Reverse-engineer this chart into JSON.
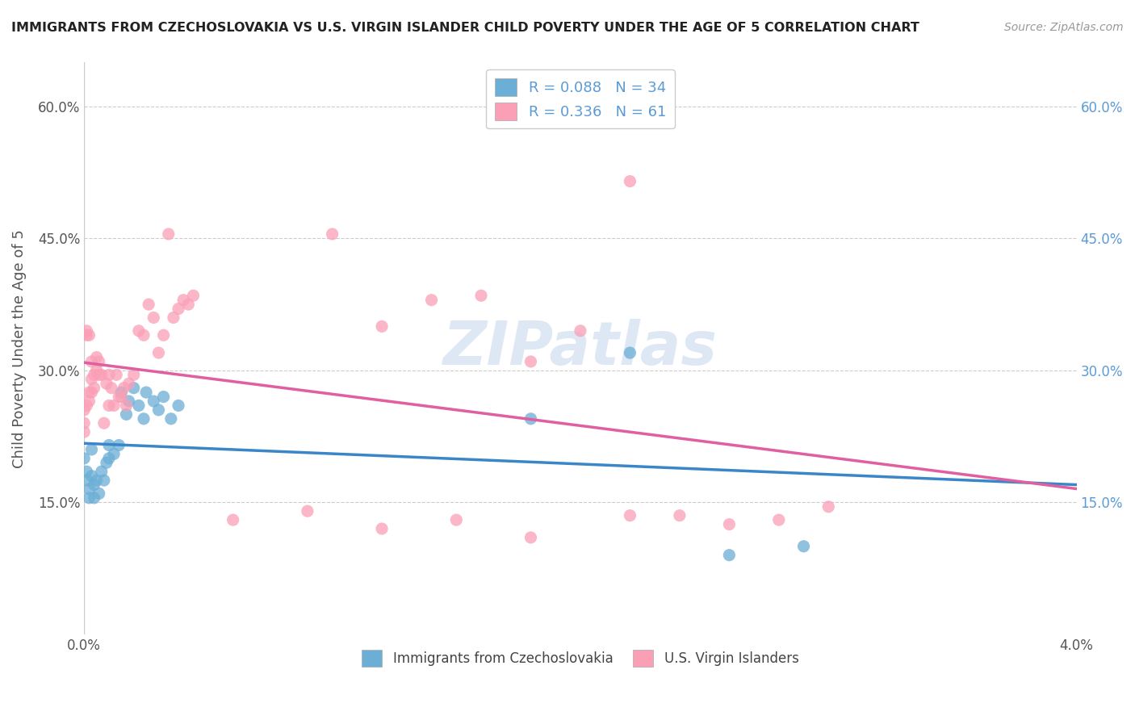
{
  "title": "IMMIGRANTS FROM CZECHOSLOVAKIA VS U.S. VIRGIN ISLANDER CHILD POVERTY UNDER THE AGE OF 5 CORRELATION CHART",
  "source": "Source: ZipAtlas.com",
  "ylabel": "Child Poverty Under the Age of 5",
  "xmin": 0.0,
  "xmax": 0.04,
  "ymin": 0.0,
  "ymax": 0.65,
  "yticks": [
    0.15,
    0.3,
    0.45,
    0.6
  ],
  "ytick_labels": [
    "15.0%",
    "30.0%",
    "45.0%",
    "60.0%"
  ],
  "xtick_labels": [
    "0.0%",
    "4.0%"
  ],
  "legend_entry1_r": "0.088",
  "legend_entry1_n": "34",
  "legend_entry2_r": "0.336",
  "legend_entry2_n": "61",
  "color_blue": "#6baed6",
  "color_pink": "#fa9fb5",
  "trendline_blue": "#3a86c8",
  "trendline_pink": "#e05fa0",
  "watermark": "ZIPatlas",
  "blue_scatter_x": [
    0.0,
    0.0001,
    0.0001,
    0.0002,
    0.0002,
    0.0003,
    0.0003,
    0.0004,
    0.0004,
    0.0005,
    0.0006,
    0.0007,
    0.0008,
    0.0009,
    0.001,
    0.001,
    0.0012,
    0.0014,
    0.0015,
    0.0017,
    0.0018,
    0.002,
    0.0022,
    0.0024,
    0.0025,
    0.0028,
    0.003,
    0.0032,
    0.0035,
    0.0038,
    0.018,
    0.022,
    0.026,
    0.029
  ],
  "blue_scatter_y": [
    0.2,
    0.185,
    0.175,
    0.165,
    0.155,
    0.21,
    0.18,
    0.17,
    0.155,
    0.175,
    0.16,
    0.185,
    0.175,
    0.195,
    0.215,
    0.2,
    0.205,
    0.215,
    0.275,
    0.25,
    0.265,
    0.28,
    0.26,
    0.245,
    0.275,
    0.265,
    0.255,
    0.27,
    0.245,
    0.26,
    0.245,
    0.32,
    0.09,
    0.1
  ],
  "pink_scatter_x": [
    0.0,
    0.0,
    0.0,
    0.0001,
    0.0001,
    0.0001,
    0.0002,
    0.0002,
    0.0002,
    0.0003,
    0.0003,
    0.0003,
    0.0004,
    0.0004,
    0.0005,
    0.0005,
    0.0006,
    0.0006,
    0.0007,
    0.0008,
    0.0009,
    0.001,
    0.001,
    0.0011,
    0.0012,
    0.0013,
    0.0014,
    0.0015,
    0.0016,
    0.0017,
    0.0018,
    0.002,
    0.0022,
    0.0024,
    0.0026,
    0.0028,
    0.003,
    0.0032,
    0.0034,
    0.0036,
    0.0038,
    0.004,
    0.0042,
    0.0044,
    0.01,
    0.012,
    0.014,
    0.016,
    0.018,
    0.02,
    0.022,
    0.024,
    0.026,
    0.028,
    0.03,
    0.022,
    0.018,
    0.015,
    0.012,
    0.009,
    0.006
  ],
  "pink_scatter_y": [
    0.23,
    0.24,
    0.255,
    0.26,
    0.34,
    0.345,
    0.265,
    0.275,
    0.34,
    0.275,
    0.29,
    0.31,
    0.28,
    0.295,
    0.3,
    0.315,
    0.295,
    0.31,
    0.295,
    0.24,
    0.285,
    0.295,
    0.26,
    0.28,
    0.26,
    0.295,
    0.27,
    0.27,
    0.28,
    0.26,
    0.285,
    0.295,
    0.345,
    0.34,
    0.375,
    0.36,
    0.32,
    0.34,
    0.455,
    0.36,
    0.37,
    0.38,
    0.375,
    0.385,
    0.455,
    0.35,
    0.38,
    0.385,
    0.31,
    0.345,
    0.135,
    0.135,
    0.125,
    0.13,
    0.145,
    0.515,
    0.11,
    0.13,
    0.12,
    0.14,
    0.13
  ],
  "grid_color": "#cccccc",
  "background_color": "#ffffff"
}
